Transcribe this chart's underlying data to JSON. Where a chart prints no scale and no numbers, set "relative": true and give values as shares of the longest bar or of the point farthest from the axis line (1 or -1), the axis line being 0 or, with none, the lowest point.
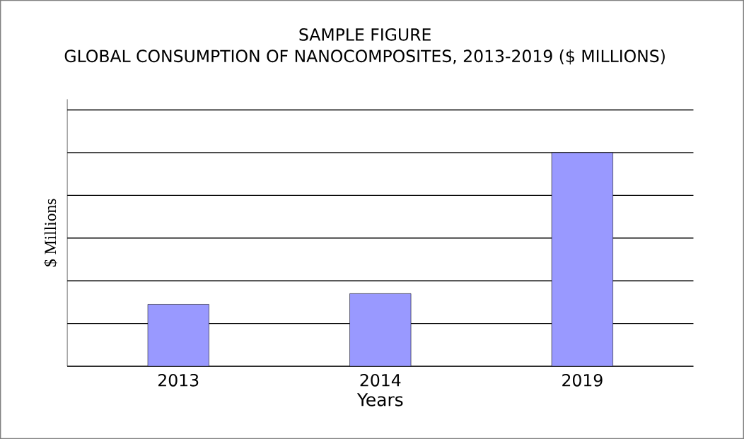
{
  "chart_data": {
    "type": "bar",
    "title": "SAMPLE FIGURE",
    "subtitle": "GLOBAL CONSUMPTION OF NANOCOMPOSITES, 2013-2019 ($ MILLIONS)",
    "xlabel": "Years",
    "ylabel": "$ Millions",
    "categories": [
      "2013",
      "2014",
      "2019"
    ],
    "values": [
      0.29,
      0.34,
      1
    ],
    "color": "#9999ff",
    "relative": true,
    "grid": "y"
  }
}
